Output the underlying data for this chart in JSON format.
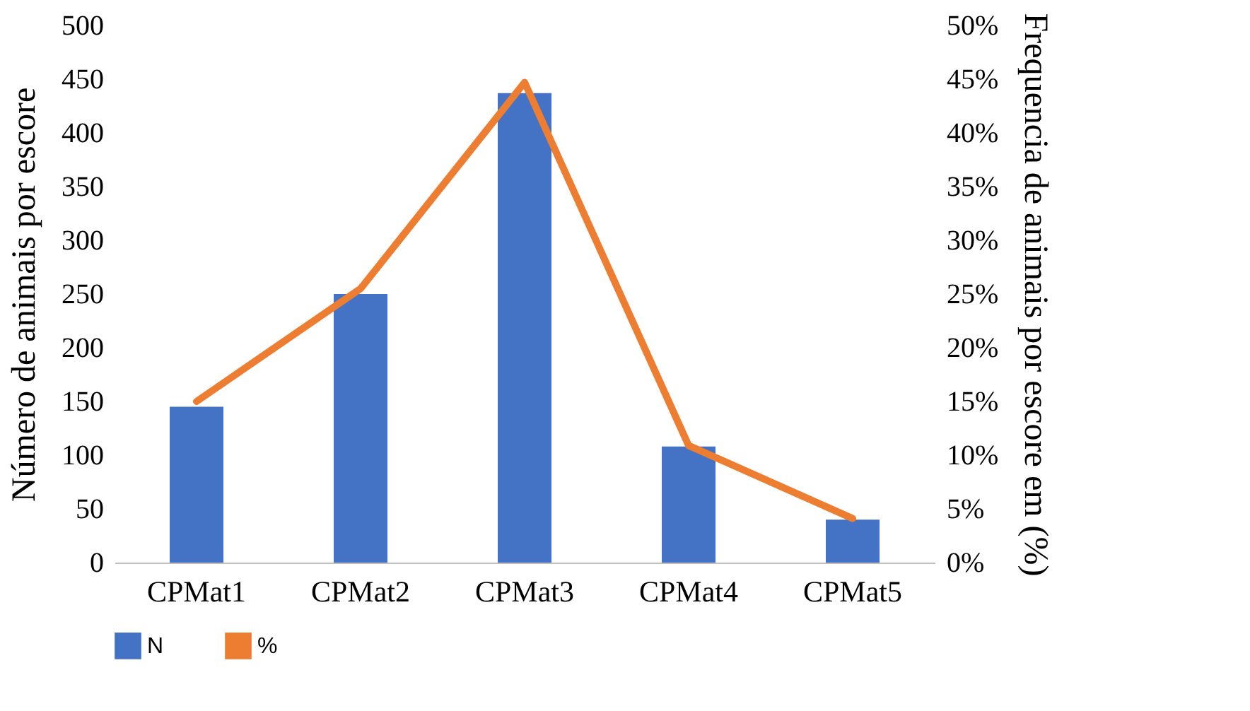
{
  "chart_data": {
    "type": "bar",
    "categories": [
      "CPMat1",
      "CPMat2",
      "CPMat3",
      "CPMat4",
      "CPMat5"
    ],
    "ylabel": "Número de animais por escore",
    "y2label": "Frequencia de animais por escore  em (%)",
    "ylim": [
      0,
      500
    ],
    "yticks": [
      0,
      50,
      100,
      150,
      200,
      250,
      300,
      350,
      400,
      450,
      500
    ],
    "y2lim": [
      0,
      50
    ],
    "y2ticks": [
      {
        "value": 0,
        "label": "0%"
      },
      {
        "value": 5,
        "label": "5%"
      },
      {
        "value": 10,
        "label": "10%"
      },
      {
        "value": 15,
        "label": "15%"
      },
      {
        "value": 20,
        "label": "20%"
      },
      {
        "value": 25,
        "label": "25%"
      },
      {
        "value": 30,
        "label": "30%"
      },
      {
        "value": 35,
        "label": "35%"
      },
      {
        "value": 40,
        "label": "40%"
      },
      {
        "value": 45,
        "label": "45%"
      },
      {
        "value": 50,
        "label": "50%"
      }
    ],
    "series": [
      {
        "name": "N",
        "color": "#4472c4",
        "values": [
          145,
          250,
          437,
          108,
          40
        ]
      },
      {
        "name": "%",
        "type": "line",
        "axis": "y2",
        "color": "#ed7d31",
        "values": [
          15,
          25.5,
          44.7,
          10.9,
          4.1
        ]
      }
    ],
    "legend": "bottom",
    "grid": false,
    "marker": "none",
    "line_style": "solid"
  }
}
